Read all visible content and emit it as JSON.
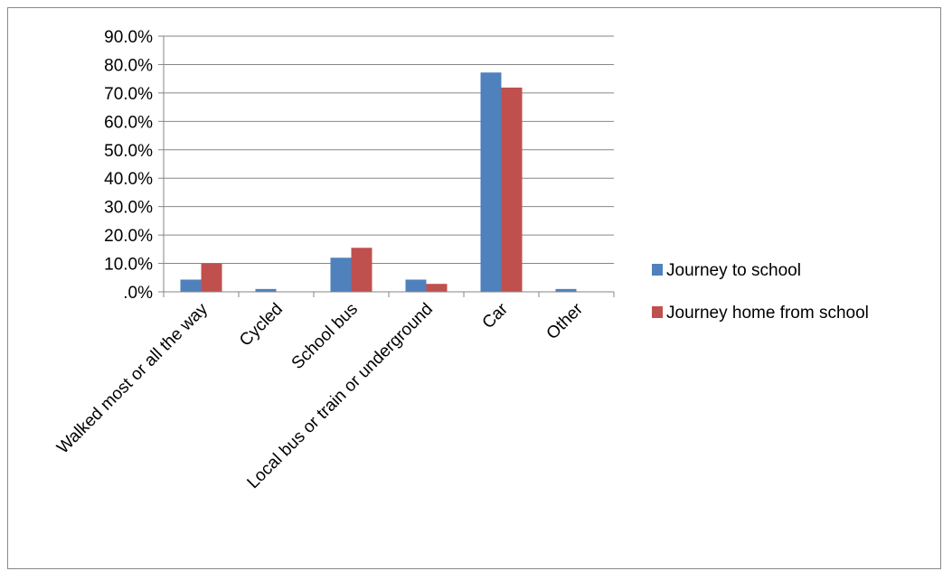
{
  "chart_data": {
    "type": "bar",
    "title": "",
    "xlabel": "",
    "ylabel": "",
    "ylim": [
      0,
      90
    ],
    "yticks": [
      0,
      10,
      20,
      30,
      40,
      50,
      60,
      70,
      80,
      90
    ],
    "ytick_labels": [
      ".0%",
      "10.0%",
      "20.0%",
      "30.0%",
      "40.0%",
      "50.0%",
      "60.0%",
      "70.0%",
      "80.0%",
      "90.0%"
    ],
    "grid": true,
    "legend_position": "right",
    "categories": [
      "Walked most or all the way",
      "Cycled",
      "School bus",
      "Local bus or train or underground",
      "Car",
      "Other"
    ],
    "series": [
      {
        "name": "Journey to school",
        "color": "#4F81BD",
        "values": [
          4.3,
          1.0,
          12.0,
          4.3,
          77.2,
          1.0
        ]
      },
      {
        "name": "Journey home from school",
        "color": "#C0504D",
        "values": [
          10.0,
          0.0,
          15.5,
          2.8,
          71.9,
          0.0
        ]
      }
    ]
  }
}
